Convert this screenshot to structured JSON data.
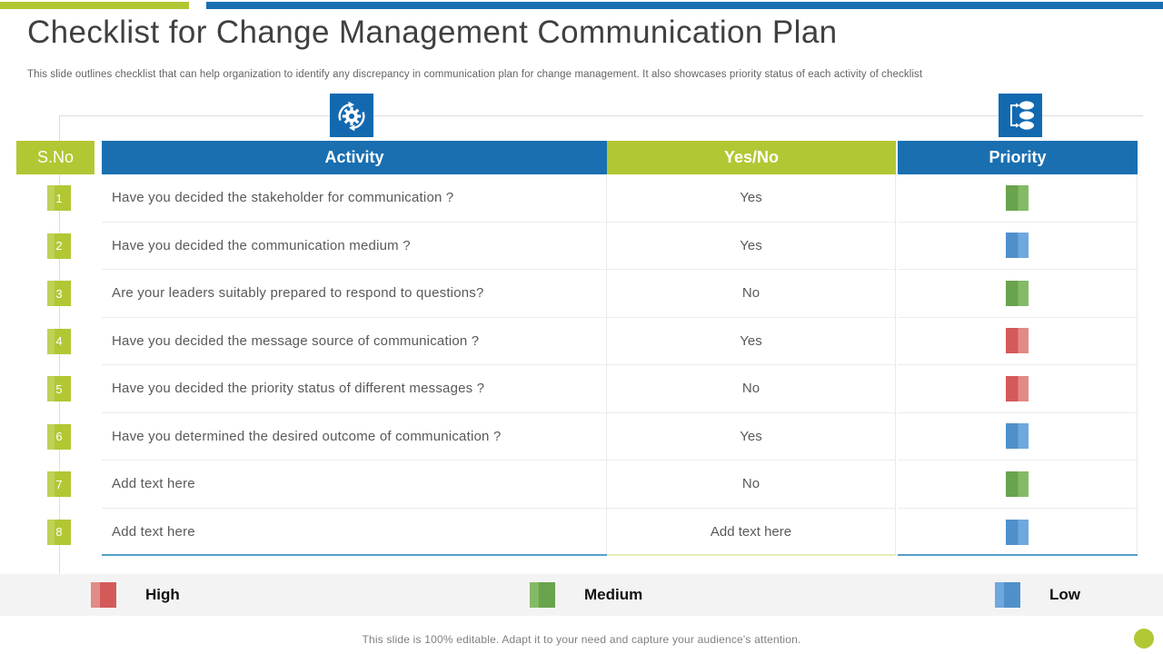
{
  "slide": {
    "title": "Checklist for Change Management Communication Plan",
    "subtitle": "This slide outlines checklist that can help organization to identify any discrepancy in communication plan for change management. It also showcases priority status of each activity of checklist",
    "footer": "This slide is 100% editable. Adapt it to your need and capture your audience's attention."
  },
  "icons": {
    "settings": "gear-sync-icon",
    "process": "stacked-list-icon"
  },
  "table": {
    "headers": {
      "sno": "S.No",
      "activity": "Activity",
      "yesno": "Yes/No",
      "priority": "Priority"
    },
    "rows": [
      {
        "no": "1",
        "activity": "Have you decided the stakeholder for communication ?",
        "yesno": "Yes",
        "priority": "medium"
      },
      {
        "no": "2",
        "activity": "Have you decided the communication medium ?",
        "yesno": "Yes",
        "priority": "low"
      },
      {
        "no": "3",
        "activity": "Are your leaders suitably prepared to respond to questions?",
        "yesno": "No",
        "priority": "medium"
      },
      {
        "no": "4",
        "activity": "Have you decided the message source of communication ?",
        "yesno": "Yes",
        "priority": "high"
      },
      {
        "no": "5",
        "activity": "Have you decided the priority status of different messages ?",
        "yesno": "No",
        "priority": "high"
      },
      {
        "no": "6",
        "activity": "Have you determined the desired outcome of communication ?",
        "yesno": "Yes",
        "priority": "low"
      },
      {
        "no": "7",
        "activity": "Add text here",
        "yesno": "No",
        "priority": "medium"
      },
      {
        "no": "8",
        "activity": "Add text here",
        "yesno": "Add text here",
        "priority": "low"
      }
    ]
  },
  "legend": {
    "items": [
      {
        "label": "High",
        "level": "high"
      },
      {
        "label": "Medium",
        "level": "medium"
      },
      {
        "label": "Low",
        "level": "low"
      }
    ]
  },
  "colors": {
    "accent_green": "#b2c733",
    "accent_blue": "#1a6fb0",
    "icon_blue": "#1269b0",
    "priority": {
      "high": {
        "dark": "#d45a5a",
        "light": "#e28a86"
      },
      "medium": {
        "dark": "#69a34c",
        "light": "#84ba66"
      },
      "low": {
        "dark": "#4f90cb",
        "light": "#6fa8de"
      }
    }
  }
}
